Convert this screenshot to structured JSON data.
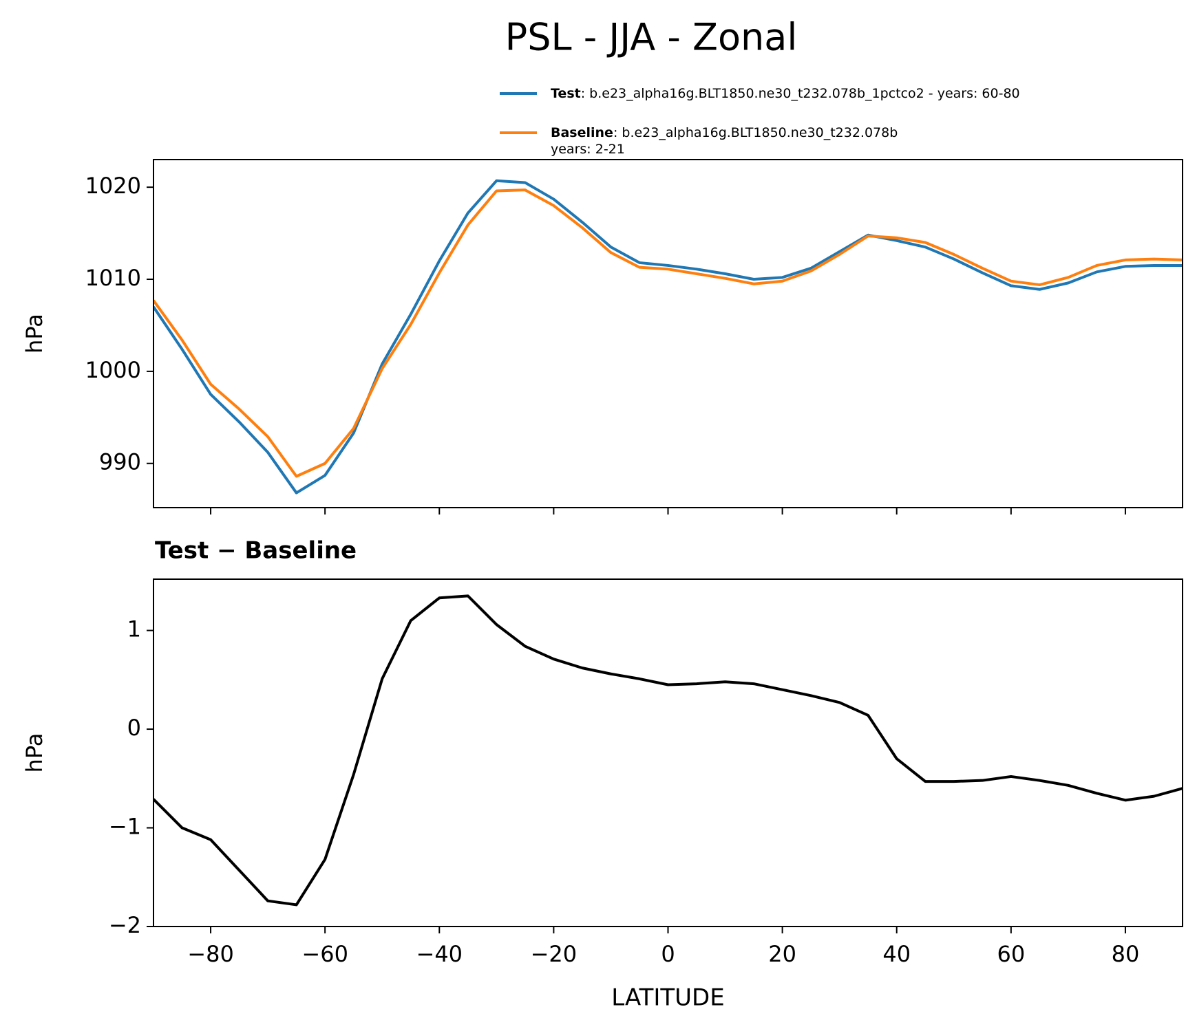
{
  "title": "PSL - JJA - Zonal",
  "chart_data": [
    {
      "type": "line",
      "ylabel": "hPa",
      "x": [
        -90,
        -85,
        -80,
        -75,
        -70,
        -65,
        -60,
        -55,
        -50,
        -45,
        -40,
        -35,
        -30,
        -25,
        -20,
        -15,
        -10,
        -5,
        0,
        5,
        10,
        15,
        20,
        25,
        30,
        35,
        40,
        45,
        50,
        55,
        60,
        65,
        70,
        75,
        80,
        85,
        90
      ],
      "xlim": [
        -90,
        90
      ],
      "xticks": [
        -80,
        -60,
        -40,
        -20,
        0,
        20,
        40,
        60,
        80
      ],
      "ylim": [
        985.2,
        1023
      ],
      "yticks": [
        990,
        1000,
        1010,
        1020
      ],
      "series": [
        {
          "name": "Test",
          "description": [
            ": b.e23_alpha16g.BLT1850.ne30_t232.078b_1pctco2 - years: 60-80"
          ],
          "color": "#1f77b4",
          "values": [
            1007.0,
            1002.4,
            997.5,
            994.5,
            991.2,
            986.8,
            988.7,
            993.3,
            1000.8,
            1006.2,
            1012.0,
            1017.2,
            1020.7,
            1020.5,
            1018.7,
            1016.2,
            1013.5,
            1011.8,
            1011.5,
            1011.1,
            1010.6,
            1010.0,
            1010.2,
            1011.2,
            1013.0,
            1014.8,
            1014.2,
            1013.5,
            1012.2,
            1010.7,
            1009.3,
            1008.9,
            1009.6,
            1010.8,
            1011.4,
            1011.5,
            1011.5
          ]
        },
        {
          "name": "Baseline",
          "description": [
            ": b.e23_alpha16g.BLT1850.ne30_t232.078b",
            "years: 2-21"
          ],
          "color": "#ff7f0e",
          "values": [
            1007.7,
            1003.4,
            998.6,
            995.9,
            992.9,
            988.6,
            990.0,
            993.8,
            1000.3,
            1005.1,
            1010.7,
            1015.9,
            1019.6,
            1019.7,
            1018.0,
            1015.6,
            1012.9,
            1011.3,
            1011.1,
            1010.6,
            1010.1,
            1009.5,
            1009.8,
            1010.9,
            1012.7,
            1014.7,
            1014.5,
            1014.0,
            1012.7,
            1011.2,
            1009.8,
            1009.4,
            1010.2,
            1011.5,
            1012.1,
            1012.2,
            1012.1
          ]
        }
      ]
    },
    {
      "type": "line",
      "title": "Test − Baseline",
      "xlabel": "LATITUDE",
      "ylabel": "hPa",
      "x": [
        -90,
        -85,
        -80,
        -75,
        -70,
        -65,
        -60,
        -55,
        -50,
        -45,
        -40,
        -35,
        -30,
        -25,
        -20,
        -15,
        -10,
        -5,
        0,
        5,
        10,
        15,
        20,
        25,
        30,
        35,
        40,
        45,
        50,
        55,
        60,
        65,
        70,
        75,
        80,
        85,
        90
      ],
      "xlim": [
        -90,
        90
      ],
      "xticks": [
        {
          "value": -80,
          "label": "−80"
        },
        {
          "value": -60,
          "label": "−60"
        },
        {
          "value": -40,
          "label": "−40"
        },
        {
          "value": -20,
          "label": "−20"
        },
        0,
        20,
        40,
        60,
        80
      ],
      "ylim": [
        -2,
        1.52
      ],
      "yticks": [
        {
          "value": -2,
          "label": "−2"
        },
        {
          "value": -1,
          "label": "−1"
        },
        0,
        1
      ],
      "series": [
        {
          "color": "#000000",
          "values": [
            -0.71,
            -1.0,
            -1.12,
            -1.43,
            -1.74,
            -1.78,
            -1.32,
            -0.46,
            0.51,
            1.1,
            1.33,
            1.35,
            1.06,
            0.84,
            0.71,
            0.62,
            0.56,
            0.51,
            0.45,
            0.46,
            0.48,
            0.46,
            0.4,
            0.34,
            0.27,
            0.14,
            -0.3,
            -0.53,
            -0.53,
            -0.52,
            -0.48,
            -0.52,
            -0.57,
            -0.65,
            -0.72,
            -0.68,
            -0.6
          ]
        }
      ]
    }
  ]
}
